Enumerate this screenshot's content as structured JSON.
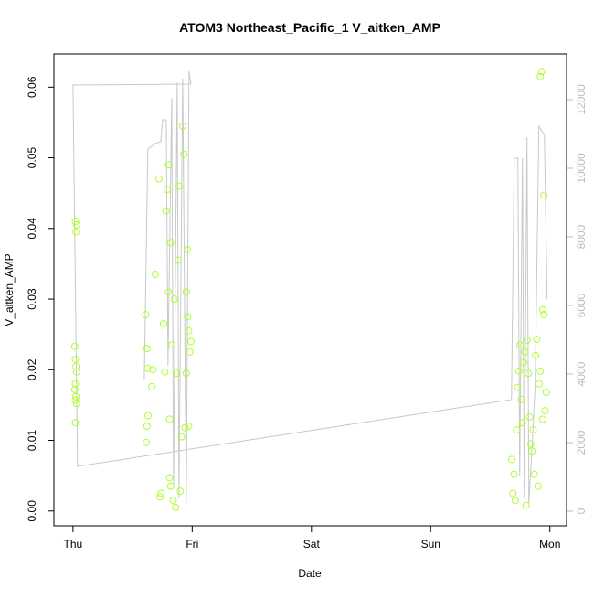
{
  "chart_data": {
    "type": "scatter",
    "title": "ATOM3 Northeast_Pacific_1 V_aitken_AMP",
    "xlabel": "Date",
    "ylabel": "V_aitken_AMP",
    "xlim": [
      -0.16,
      4.14
    ],
    "xticks": [
      {
        "value": 0,
        "label": "Thu"
      },
      {
        "value": 1,
        "label": "Fri"
      },
      {
        "value": 2,
        "label": "Sat"
      },
      {
        "value": 3,
        "label": "Sun"
      },
      {
        "value": 4,
        "label": "Mon"
      }
    ],
    "ylim": [
      -0.0021,
      0.0647
    ],
    "yticks": [
      {
        "value": 0,
        "label": "0.00"
      },
      0.01,
      0.02,
      0.03,
      0.04,
      0.05,
      0.06
    ],
    "y2lim": [
      -427,
      13333
    ],
    "y2ticks": [
      0,
      2000,
      4000,
      6000,
      8000,
      10000,
      12000
    ],
    "series": [
      {
        "type": "scatter",
        "color": "#adff2f",
        "x": [
          0.02,
          0.03,
          0.025,
          0.015,
          0.02,
          0.025,
          0.03,
          0.02,
          0.015,
          0.025,
          0.02,
          0.03,
          0.02,
          0.61,
          0.62,
          0.625,
          0.63,
          0.62,
          0.615,
          0.66,
          0.67,
          0.69,
          0.72,
          0.73,
          0.74,
          0.76,
          0.77,
          0.78,
          0.79,
          0.8,
          0.8,
          0.81,
          0.81,
          0.82,
          0.82,
          0.83,
          0.84,
          0.85,
          0.86,
          0.87,
          0.88,
          0.89,
          0.9,
          0.91,
          0.92,
          0.93,
          0.94,
          0.95,
          0.96,
          0.97,
          0.98,
          0.96,
          0.95,
          0.97,
          0.99,
          3.68,
          3.69,
          3.7,
          3.71,
          3.72,
          3.73,
          3.74,
          3.75,
          3.76,
          3.77,
          3.78,
          3.79,
          3.8,
          3.81,
          3.82,
          3.83,
          3.84,
          3.85,
          3.86,
          3.87,
          3.88,
          3.89,
          3.9,
          3.91,
          3.92,
          3.93,
          3.94,
          3.95,
          3.96,
          3.97,
          3.92,
          3.95,
          3.94
        ],
        "values": [
          0.041,
          0.0405,
          0.0395,
          0.0233,
          0.0215,
          0.0205,
          0.0197,
          0.018,
          0.0172,
          0.0162,
          0.0157,
          0.0152,
          0.0125,
          0.0278,
          0.023,
          0.0202,
          0.0135,
          0.012,
          0.0097,
          0.0176,
          0.02,
          0.0335,
          0.047,
          0.002,
          0.0025,
          0.0265,
          0.0197,
          0.0425,
          0.0455,
          0.049,
          0.031,
          0.0047,
          0.013,
          0.038,
          0.0035,
          0.0235,
          0.0015,
          0.03,
          0.0005,
          0.0195,
          0.0355,
          0.046,
          0.0028,
          0.0105,
          0.0545,
          0.0505,
          0.0118,
          0.031,
          0.0275,
          0.0255,
          0.0225,
          0.037,
          0.0195,
          0.012,
          0.024,
          0.0073,
          0.0025,
          0.0052,
          0.0015,
          0.0115,
          0.0175,
          0.0198,
          0.0235,
          0.0158,
          0.0125,
          0.021,
          0.0225,
          0.0008,
          0.0242,
          0.0195,
          0.0133,
          0.0095,
          0.0085,
          0.0115,
          0.0052,
          0.022,
          0.0243,
          0.0035,
          0.018,
          0.0615,
          0.0622,
          0.0285,
          0.0447,
          0.0142,
          0.0168,
          0.0198,
          0.0278,
          0.013
        ]
      },
      {
        "type": "line",
        "axis": "y2",
        "color": "#c8c8c8",
        "x": [
          0.598,
          0.628,
          0.69,
          0.736,
          0.751,
          0.782,
          0.797,
          0.828,
          0.843,
          0.874,
          0.889,
          0.92,
          0.95,
          0.973,
          0.989,
          0.0,
          0.038,
          3.678,
          3.701,
          3.732,
          3.747,
          3.77,
          3.785,
          3.808,
          3.824,
          3.854,
          3.877,
          3.908,
          3.954,
          3.977
        ],
        "values": [
          3840,
          10560,
          10720,
          10773,
          11413,
          11413,
          4240,
          12053,
          773,
          12507,
          373,
          12613,
          240,
          12827,
          12453,
          12427,
          1307,
          3253,
          10293,
          10293,
          1040,
          10293,
          373,
          10907,
          240,
          2107,
          3707,
          11227,
          10960,
          6187
        ]
      }
    ]
  }
}
